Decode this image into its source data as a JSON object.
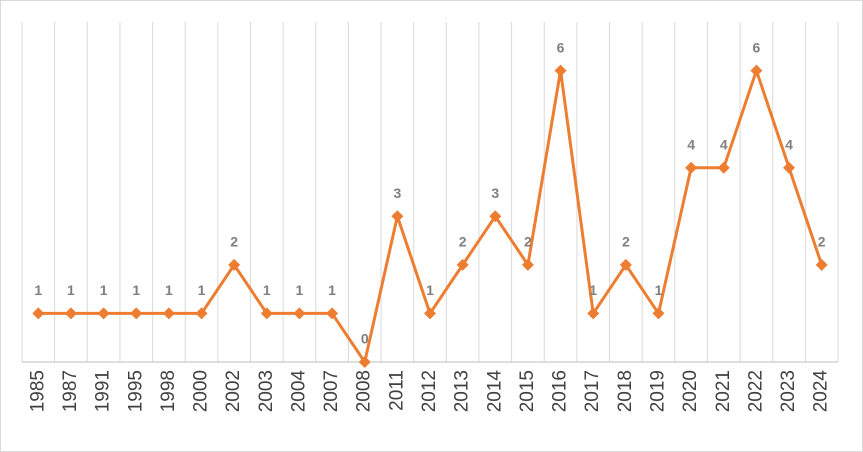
{
  "chart_data": {
    "type": "line",
    "categories": [
      "1985",
      "1987",
      "1991",
      "1995",
      "1998",
      "2000",
      "2002",
      "2003",
      "2004",
      "2007",
      "2008",
      "2011",
      "2012",
      "2013",
      "2014",
      "2015",
      "2016",
      "2017",
      "2018",
      "2019",
      "2020",
      "2021",
      "2022",
      "2023",
      "2024"
    ],
    "values": [
      1,
      1,
      1,
      1,
      1,
      1,
      2,
      1,
      1,
      1,
      0,
      3,
      1,
      2,
      3,
      2,
      6,
      1,
      2,
      1,
      4,
      4,
      6,
      4,
      2
    ],
    "color": "#ed7d31",
    "ylim": [
      0,
      7
    ],
    "grid": true
  }
}
